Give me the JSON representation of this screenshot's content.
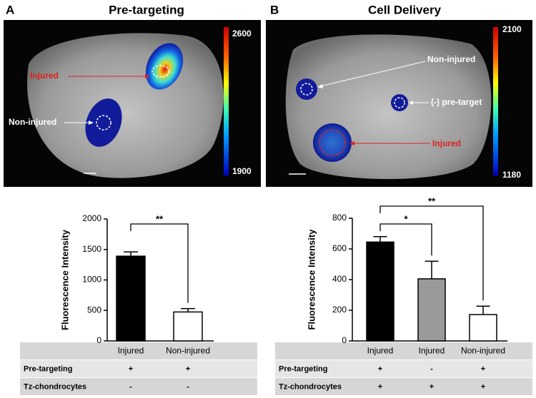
{
  "panels": [
    {
      "label": "A",
      "title": "Pre-targeting",
      "colorbar": [
        2600,
        1900
      ],
      "labels": [
        "Injured",
        "Non-injured"
      ]
    },
    {
      "label": "B",
      "title": "Cell Delivery",
      "colorbar": [
        2100,
        1180
      ],
      "labels": [
        "Non-injured",
        "(-) pre-target",
        "Injured"
      ]
    }
  ],
  "chart_data": [
    {
      "type": "bar",
      "y_label": "Fluorescence Intensity",
      "categories": [
        "Injured",
        "Non-injured"
      ],
      "series": [
        {
          "values": [
            1390,
            475
          ],
          "errors": [
            70,
            55
          ],
          "colors": [
            "#000000",
            "#ffffff"
          ]
        }
      ],
      "ylim": [
        0,
        2000
      ],
      "yticks": [
        0,
        500,
        1000,
        1500,
        2000
      ],
      "annotations": [
        "**"
      ],
      "table": {
        "rows": [
          [
            "Pre-targeting",
            "+",
            "+"
          ],
          [
            "Tz-chondrocytes",
            "-",
            "-"
          ]
        ]
      }
    },
    {
      "type": "bar",
      "y_label": "Fluorescence Intensity",
      "categories": [
        "Injured",
        "Injured",
        "Non-injured"
      ],
      "series": [
        {
          "values": [
            645,
            405,
            172
          ],
          "errors": [
            35,
            115,
            55
          ],
          "colors": [
            "#000000",
            "#9a9a9a",
            "#ffffff"
          ]
        }
      ],
      "ylim": [
        0,
        800
      ],
      "yticks": [
        0,
        200,
        400,
        600,
        800
      ],
      "annotations": [
        "**",
        "*"
      ],
      "table": {
        "rows": [
          [
            "Pre-targeting",
            "+",
            "-",
            "+"
          ],
          [
            "Tz-chondrocytes",
            "+",
            "+",
            "+"
          ]
        ]
      }
    }
  ]
}
